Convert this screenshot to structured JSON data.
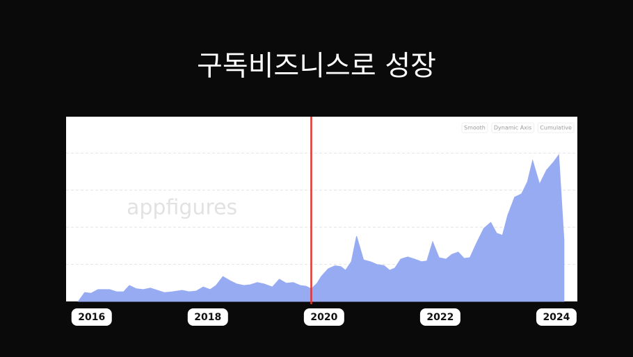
{
  "title": "구독비즈니스로 성장",
  "chart_data": {
    "type": "area",
    "watermark": "appfigures",
    "controls": [
      "Smooth",
      "Dynamic Axis",
      "Cumulative"
    ],
    "x": [
      2015.77,
      2015.88,
      2015.99,
      2016.11,
      2016.31,
      2016.43,
      2016.55,
      2016.65,
      2016.77,
      2016.89,
      2017.01,
      2017.13,
      2017.25,
      2017.39,
      2017.56,
      2017.68,
      2017.8,
      2017.92,
      2018.04,
      2018.14,
      2018.26,
      2018.38,
      2018.5,
      2018.62,
      2018.73,
      2018.85,
      2018.97,
      2019.11,
      2019.23,
      2019.35,
      2019.47,
      2019.59,
      2019.69,
      2019.78,
      2019.88,
      2019.95,
      2020.07,
      2020.19,
      2020.29,
      2020.37,
      2020.47,
      2020.56,
      2020.68,
      2020.8,
      2020.92,
      2021.03,
      2021.13,
      2021.22,
      2021.32,
      2021.44,
      2021.56,
      2021.68,
      2021.77,
      2021.87,
      2021.98,
      2022.1,
      2022.2,
      2022.31,
      2022.41,
      2022.51,
      2022.63,
      2022.75,
      2022.87,
      2022.97,
      2023.07,
      2023.16,
      2023.28,
      2023.4,
      2023.5,
      2023.59,
      2023.71,
      2023.83,
      2023.95,
      2024.04,
      2024.13
    ],
    "values": [
      0,
      0.24,
      0.22,
      0.32,
      0.32,
      0.26,
      0.26,
      0.43,
      0.34,
      0.32,
      0.36,
      0.3,
      0.24,
      0.26,
      0.3,
      0.26,
      0.28,
      0.39,
      0.32,
      0.43,
      0.67,
      0.56,
      0.47,
      0.43,
      0.45,
      0.51,
      0.47,
      0.39,
      0.6,
      0.49,
      0.51,
      0.43,
      0.41,
      0.34,
      0.49,
      0.67,
      0.88,
      0.96,
      0.94,
      0.84,
      1.07,
      1.76,
      1.12,
      1.07,
      0.99,
      0.97,
      0.84,
      0.9,
      1.14,
      1.2,
      1.14,
      1.07,
      1.09,
      1.61,
      1.18,
      1.14,
      1.27,
      1.33,
      1.16,
      1.18,
      1.59,
      1.97,
      2.13,
      1.84,
      1.78,
      2.32,
      2.81,
      2.9,
      3.22,
      3.8,
      3.16,
      3.54,
      3.76,
      3.95,
      1.65
    ],
    "color": "#97abf2",
    "xlim": [
      2015.56,
      2024.36
    ],
    "ylim": [
      0,
      4.98
    ],
    "xticks": [
      2016,
      2018,
      2020,
      2022,
      2024
    ],
    "gridlines": [
      1,
      2,
      3,
      4
    ],
    "grid": true,
    "marker_x": 2019.78,
    "marker_color": "#e8322c"
  }
}
